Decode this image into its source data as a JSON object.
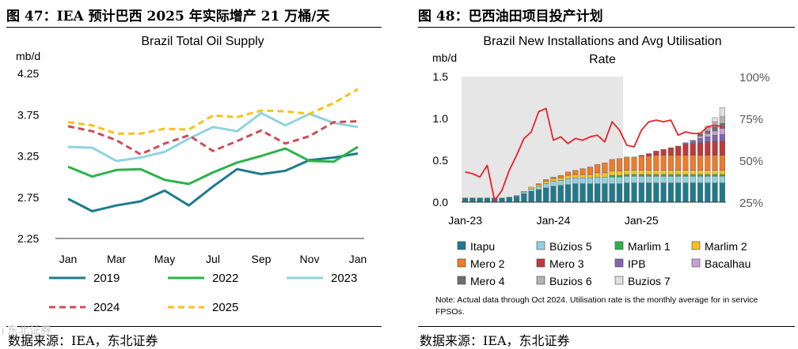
{
  "left": {
    "figure_label": "图 47：IEA 预计巴西 2025 年实际增产 21 万桶/天",
    "source": "数据来源：IEA，东北证券",
    "chart_data": {
      "type": "line",
      "title": "Brazil Total Oil Supply",
      "ylabel": "mb/d",
      "ylim": [
        2.25,
        4.25
      ],
      "yticks": [
        2.25,
        2.75,
        3.25,
        3.75,
        4.25
      ],
      "ytick_labels": [
        "2.25",
        "2.75",
        "3.25",
        "3.75",
        "4.25"
      ],
      "x_tick_labels": [
        "Jan",
        "Mar",
        "May",
        "Jul",
        "Sep",
        "Nov",
        "Jan"
      ],
      "x_tick_index": [
        0,
        2,
        4,
        6,
        8,
        10,
        12
      ],
      "series": [
        {
          "name": "2019",
          "color": "#1f7a8c",
          "dash": false,
          "values": [
            2.73,
            2.58,
            2.65,
            2.7,
            2.83,
            2.65,
            2.88,
            3.09,
            3.03,
            3.07,
            3.2,
            3.23,
            3.28
          ]
        },
        {
          "name": "2022",
          "color": "#2bb34a",
          "dash": false,
          "values": [
            3.12,
            3.0,
            3.08,
            3.09,
            2.96,
            2.91,
            3.05,
            3.17,
            3.25,
            3.34,
            3.19,
            3.18,
            3.36
          ]
        },
        {
          "name": "2023",
          "color": "#8fd3df",
          "dash": false,
          "values": [
            3.36,
            3.35,
            3.19,
            3.23,
            3.3,
            3.46,
            3.6,
            3.55,
            3.77,
            3.62,
            3.76,
            3.65,
            3.6
          ]
        },
        {
          "name": "2024",
          "color": "#d24b57",
          "dash": true,
          "values": [
            3.61,
            3.55,
            3.44,
            3.27,
            3.4,
            3.5,
            3.31,
            3.43,
            3.56,
            3.4,
            3.49,
            3.66,
            3.67
          ]
        },
        {
          "name": "2025",
          "color": "#f7c21b",
          "dash": true,
          "values": [
            3.66,
            3.62,
            3.52,
            3.52,
            3.58,
            3.57,
            3.74,
            3.72,
            3.8,
            3.79,
            3.76,
            3.89,
            4.06
          ]
        }
      ]
    }
  },
  "right": {
    "figure_label": "图 48：巴西油田项目投产计划",
    "source": "数据来源：IEA，东北证券",
    "watermark": "i  东北证券",
    "chart_data": {
      "type": "bar",
      "stacked": true,
      "title": "Brazil New Installations and Avg Utilisation Rate",
      "title_lines": [
        "Brazil New Installations and Avg Utilisation",
        "Rate"
      ],
      "ylabel": "mb/d",
      "ylim": [
        0,
        1.5
      ],
      "yticks": [
        0,
        0.5,
        1.0,
        1.5
      ],
      "ytick_labels": [
        "0.0",
        "0.5",
        "1.0",
        "1.5"
      ],
      "y2lim": [
        25,
        100
      ],
      "y2ticks": [
        25,
        50,
        75,
        100
      ],
      "y2tick_labels": [
        "25%",
        "50%",
        "75%",
        "100%"
      ],
      "x_tick_labels": [
        "Jan-23",
        "Jan-24",
        "Jan-25"
      ],
      "x_tick_index": [
        0,
        12,
        24
      ],
      "shaded_actual_through_index": 21,
      "n_months": 36,
      "series": [
        {
          "name": "Itapu",
          "color": "#1f7a8c",
          "values": [
            0.05,
            0.05,
            0.05,
            0.05,
            0.05,
            0.05,
            0.06,
            0.07,
            0.1,
            0.13,
            0.15,
            0.17,
            0.19,
            0.2,
            0.21,
            0.22,
            0.22,
            0.22,
            0.22,
            0.22,
            0.22,
            0.22,
            0.23,
            0.23,
            0.23,
            0.23,
            0.23,
            0.23,
            0.23,
            0.23,
            0.23,
            0.23,
            0.23,
            0.23,
            0.23,
            0.23
          ]
        },
        {
          "name": "Búzios 5",
          "color": "#8fd3df",
          "values": [
            0,
            0,
            0,
            0,
            0,
            0,
            0,
            0.01,
            0.02,
            0.03,
            0.04,
            0.05,
            0.06,
            0.06,
            0.07,
            0.07,
            0.07,
            0.07,
            0.08,
            0.08,
            0.08,
            0.08,
            0.08,
            0.08,
            0.08,
            0.08,
            0.08,
            0.08,
            0.08,
            0.08,
            0.08,
            0.08,
            0.08,
            0.08,
            0.08,
            0.08
          ]
        },
        {
          "name": "Marlim 1",
          "color": "#2bb34a",
          "values": [
            0,
            0,
            0,
            0,
            0,
            0,
            0,
            0,
            0,
            0,
            0,
            0,
            0,
            0,
            0,
            0,
            0,
            0,
            0,
            0,
            0.02,
            0.02,
            0.02,
            0.02,
            0.02,
            0.02,
            0.02,
            0.02,
            0.02,
            0.02,
            0.02,
            0.02,
            0.02,
            0.02,
            0.02,
            0.02
          ]
        },
        {
          "name": "Marlim 2",
          "color": "#f7c21b",
          "values": [
            0,
            0,
            0,
            0,
            0,
            0,
            0,
            0,
            0.01,
            0.02,
            0.02,
            0.03,
            0.03,
            0.03,
            0.04,
            0.04,
            0.04,
            0.04,
            0.05,
            0.05,
            0.05,
            0.05,
            0.05,
            0.05,
            0.05,
            0.05,
            0.05,
            0.05,
            0.05,
            0.05,
            0.05,
            0.05,
            0.05,
            0.05,
            0.05,
            0.05
          ]
        },
        {
          "name": "Mero 2",
          "color": "#ec7c2c",
          "values": [
            0,
            0,
            0,
            0,
            0,
            0,
            0,
            0,
            0,
            0,
            0.01,
            0.02,
            0.02,
            0.03,
            0.04,
            0.05,
            0.07,
            0.09,
            0.1,
            0.12,
            0.14,
            0.15,
            0.16,
            0.16,
            0.17,
            0.17,
            0.18,
            0.18,
            0.18,
            0.18,
            0.18,
            0.18,
            0.18,
            0.18,
            0.18,
            0.18
          ]
        },
        {
          "name": "Mero 3",
          "color": "#c0393b",
          "values": [
            0,
            0,
            0,
            0,
            0,
            0,
            0,
            0,
            0,
            0,
            0,
            0,
            0,
            0,
            0,
            0,
            0,
            0,
            0,
            0,
            0,
            0,
            0,
            0,
            0.01,
            0.03,
            0.05,
            0.07,
            0.09,
            0.11,
            0.13,
            0.14,
            0.15,
            0.16,
            0.17,
            0.17
          ]
        },
        {
          "name": "IPB",
          "color": "#7b68b0",
          "values": [
            0,
            0,
            0,
            0,
            0,
            0,
            0,
            0,
            0,
            0,
            0,
            0,
            0,
            0,
            0,
            0,
            0,
            0,
            0,
            0,
            0,
            0,
            0,
            0,
            0,
            0,
            0,
            0,
            0,
            0,
            0.02,
            0.03,
            0.05,
            0.06,
            0.07,
            0.08
          ]
        },
        {
          "name": "Bacalhau",
          "color": "#c9a0d8",
          "values": [
            0,
            0,
            0,
            0,
            0,
            0,
            0,
            0,
            0,
            0,
            0,
            0,
            0,
            0,
            0,
            0,
            0,
            0,
            0,
            0,
            0,
            0,
            0,
            0,
            0,
            0,
            0,
            0,
            0,
            0,
            0,
            0.01,
            0.03,
            0.04,
            0.05,
            0.07
          ]
        },
        {
          "name": "Mero 4",
          "color": "#6e6e6e",
          "values": [
            0,
            0,
            0,
            0,
            0,
            0,
            0,
            0,
            0,
            0,
            0,
            0,
            0,
            0,
            0,
            0,
            0,
            0,
            0,
            0,
            0,
            0,
            0,
            0,
            0,
            0,
            0,
            0,
            0,
            0,
            0,
            0,
            0.02,
            0.03,
            0.05,
            0.06
          ]
        },
        {
          "name": "Buzios 6",
          "color": "#b3b3b3",
          "values": [
            0,
            0,
            0,
            0,
            0,
            0,
            0,
            0,
            0,
            0,
            0,
            0,
            0,
            0,
            0,
            0,
            0,
            0,
            0,
            0,
            0,
            0,
            0,
            0,
            0,
            0,
            0,
            0,
            0,
            0,
            0,
            0,
            0.02,
            0.04,
            0.06,
            0.08
          ]
        },
        {
          "name": "Buzios 7",
          "color": "#e0e0e0",
          "values": [
            0,
            0,
            0,
            0,
            0,
            0,
            0,
            0,
            0,
            0,
            0,
            0,
            0,
            0,
            0,
            0,
            0,
            0,
            0,
            0,
            0,
            0,
            0,
            0,
            0,
            0,
            0,
            0,
            0,
            0,
            0,
            0,
            0,
            0.02,
            0.05,
            0.11
          ]
        }
      ],
      "utilisation_line": {
        "name": "Avg utilisation rate",
        "color": "#e8202a",
        "axis": "right",
        "values": [
          43,
          42,
          40,
          47,
          26,
          32,
          44,
          53,
          63,
          67,
          79,
          81,
          62,
          64,
          60,
          63,
          62,
          64,
          65,
          61,
          73,
          68,
          59,
          58,
          68,
          73,
          74,
          73,
          74,
          65,
          67,
          66,
          66,
          70,
          71,
          70
        ]
      },
      "note": "Note: Actual data through Oct 2024. Utilisation rate is the monthly average for in service FPSOs."
    }
  }
}
